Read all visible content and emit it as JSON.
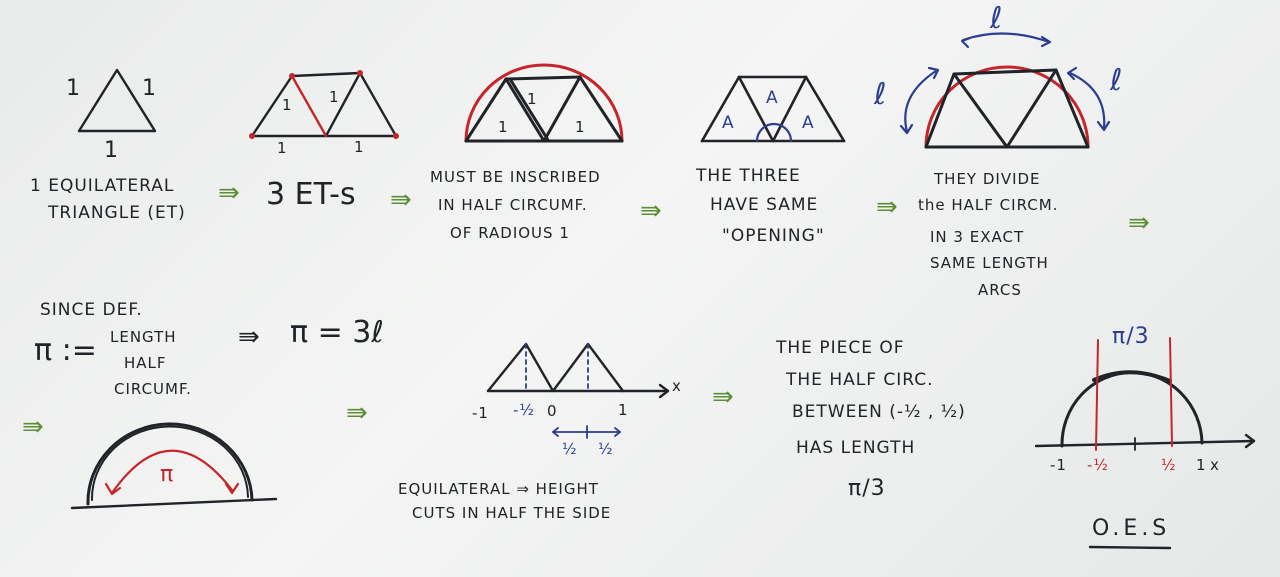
{
  "panels": {
    "et1": {
      "side_left": "1",
      "side_right": "1",
      "side_bottom": "1",
      "caption_l1": "1 EQUILATERAL",
      "caption_l2": "TRIANGLE (ET)"
    },
    "et3": {
      "label_a": "1",
      "label_b": "1",
      "base_a": "1",
      "base_b": "1",
      "caption": "3 ET-s"
    },
    "inscribed": {
      "label_top": "1",
      "label_left": "1",
      "label_right": "1",
      "caption_l1": "MUST BE INSCRIBED",
      "caption_l2": "IN HALF CIRCUMF.",
      "caption_l3": "OF RADIOUS 1"
    },
    "opening": {
      "angle_a": "A",
      "angle_b": "A",
      "angle_c": "A",
      "caption_l1": "THE THREE",
      "caption_l2": "HAVE SAME",
      "caption_l3": "\"OPENING\""
    },
    "divide": {
      "arc_top": "ℓ",
      "arc_left": "ℓ",
      "arc_right": "ℓ",
      "caption_l1": "THEY DIVIDE",
      "caption_l2": "the HALF CIRCM.",
      "caption_l3": "IN 3 EXACT",
      "caption_l4": "SAME LENGTH",
      "caption_l5": "ARCS"
    },
    "definition": {
      "line1": "SINCE DEF.",
      "pi_def": "π :=",
      "def_l1": "LENGTH",
      "def_l2": "HALF",
      "def_l3": "CIRCUMF.",
      "result": "π = 3ℓ"
    },
    "pi_arc": {
      "label": "π"
    },
    "height": {
      "tick_neg1": "-1",
      "tick_neg_half": "-½",
      "tick_zero": "0",
      "tick_one": "1",
      "axis_x": "x",
      "half_a": "½",
      "half_b": "½",
      "caption_l1": "EQUILATERAL ⇒ HEIGHT",
      "caption_l2": "CUTS IN HALF THE SIDE"
    },
    "piece": {
      "line1": "THE PIECE OF",
      "line2": "THE HALF CIRC.",
      "line3": "BETWEEN (-½ , ½)",
      "line4": "HAS LENGTH",
      "line5": "π/3"
    },
    "final": {
      "top_label": "π/3",
      "tick_neg1": "-1",
      "tick_neg_half": "-½",
      "tick_half": "½",
      "tick_one": "1",
      "axis_x": "x",
      "qed": "O.E.S"
    }
  },
  "arrow_glyph": "⇛",
  "colors": {
    "ink": "#202328",
    "red": "#c4262b",
    "blue": "#2b3e8f",
    "green": "#5c8f35"
  }
}
